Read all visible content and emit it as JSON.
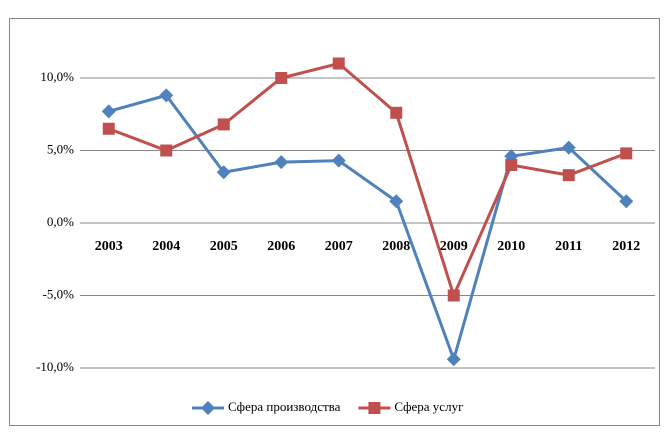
{
  "chart_data": {
    "type": "line",
    "categories": [
      "2003",
      "2004",
      "2005",
      "2006",
      "2007",
      "2008",
      "2009",
      "2010",
      "2011",
      "2012"
    ],
    "series": [
      {
        "name": "Сфера производства",
        "color": "#4f81bd",
        "marker": "diamond",
        "values": [
          7.7,
          8.8,
          3.5,
          4.2,
          4.3,
          1.5,
          -9.4,
          4.6,
          5.2,
          1.5
        ]
      },
      {
        "name": "Сфера услуг",
        "color": "#c0504d",
        "marker": "square",
        "values": [
          6.5,
          5.0,
          6.8,
          10.0,
          11.0,
          7.6,
          -5.0,
          4.0,
          3.3,
          4.8
        ]
      }
    ],
    "ylim": [
      -10,
      12
    ],
    "yticks": [
      {
        "value": -10,
        "label": "-10,0%"
      },
      {
        "value": -5,
        "label": "-5,0%"
      },
      {
        "value": 0,
        "label": "0,0%"
      },
      {
        "value": 5,
        "label": "5,0%"
      },
      {
        "value": 10,
        "label": "10,0%"
      }
    ],
    "grid": true,
    "legend": "bottom"
  }
}
